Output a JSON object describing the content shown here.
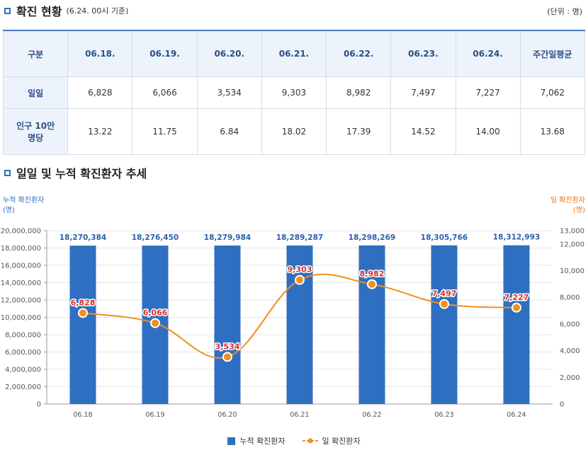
{
  "section1": {
    "title": "확진 현황",
    "subtitle": "(6.24. 00시 기준)",
    "unit": "(단위 : 명)"
  },
  "table": {
    "header_label": "구분",
    "dates": [
      "06.18.",
      "06.19.",
      "06.20.",
      "06.21.",
      "06.22.",
      "06.23.",
      "06.24."
    ],
    "avg_label": "주간일평균",
    "rows": [
      {
        "label": "일일",
        "values": [
          "6,828",
          "6,066",
          "3,534",
          "9,303",
          "8,982",
          "7,497",
          "7,227"
        ],
        "avg": "7,062"
      },
      {
        "label": "인구 10만명당",
        "values": [
          "13.22",
          "11.75",
          "6.84",
          "18.02",
          "17.39",
          "14.52",
          "14.00"
        ],
        "avg": "13.68"
      }
    ]
  },
  "section2": {
    "title": "일일 및 누적 확진환자 추세"
  },
  "colors": {
    "bar": "#2f6fc1",
    "line": "#f0901e",
    "accent": "#2f6fc1",
    "daily_label": "#d9312b"
  },
  "chart_data": {
    "type": "bar+line",
    "categories": [
      "06.18",
      "06.19",
      "06.20",
      "06.21",
      "06.22",
      "06.23",
      "06.24"
    ],
    "series": [
      {
        "name": "누적 확진환자",
        "kind": "bar",
        "axis": "left",
        "values": [
          18270384,
          18276450,
          18279984,
          18289287,
          18298269,
          18305766,
          18312993
        ],
        "labels": [
          "18,270,384",
          "18,276,450",
          "18,279,984",
          "18,289,287",
          "18,298,269",
          "18,305,766",
          "18,312,993"
        ]
      },
      {
        "name": "일 확진환자",
        "kind": "line",
        "axis": "right",
        "values": [
          6828,
          6066,
          3534,
          9303,
          8982,
          7497,
          7227
        ],
        "labels": [
          "6,828",
          "6,066",
          "3,534",
          "9,303",
          "8,982",
          "7,497",
          "7,227"
        ]
      }
    ],
    "left_axis": {
      "title": "누적 확진환자",
      "unit": "(명)",
      "ylim": [
        0,
        20000000
      ],
      "ticks": [
        "20,000,000",
        "18,000,000",
        "16,000,000",
        "14,000,000",
        "12,000,000",
        "10,000,000",
        "8,000,000",
        "6,000,000",
        "4,000,000",
        "2,000,000",
        "0"
      ]
    },
    "right_axis": {
      "title": "일 확진환자",
      "unit": "(명)",
      "ylim": [
        0,
        13000
      ],
      "ticks": [
        "13,000",
        "12,000",
        "10,000",
        "8,000",
        "6,000",
        "4,000",
        "2,000",
        "0"
      ]
    },
    "legend": [
      "누적 확진환자",
      "일 확진환자"
    ]
  }
}
